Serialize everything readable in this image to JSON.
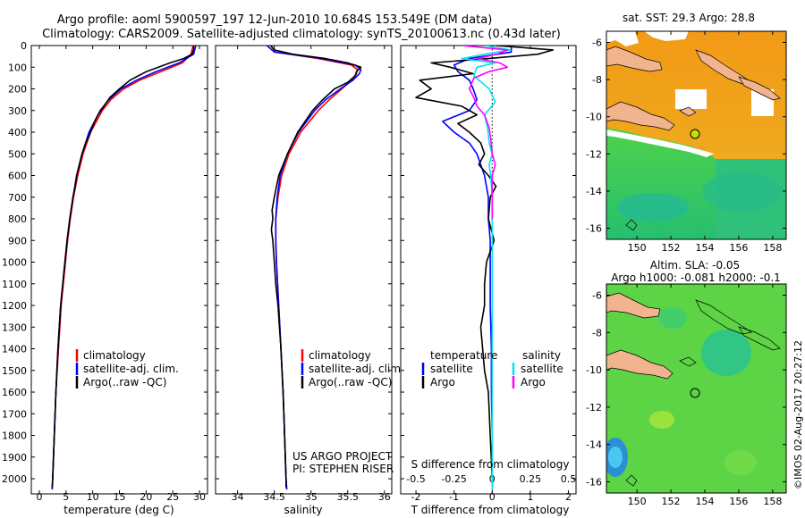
{
  "header": {
    "line1": "Argo profile: aoml 5900597_197 12-Jun-2010 10.684S 153.549E (DM data)",
    "line2": "Climatology: CARS2009. Satellite-adjusted climatology: synTS_20100613.nc (0.43d later)"
  },
  "credit": "©IMOS 02-Aug-2017 20:27:12",
  "colors": {
    "climatology": "#ff0000",
    "satellite": "#0000ff",
    "argo": "#000000",
    "argo_salinity_diff": "#ff00ff",
    "satellite_salinity_diff": "#00e5ee"
  },
  "chart_data": [
    {
      "type": "line",
      "name": "temperature-profile",
      "xlabel": "temperature (deg C)",
      "ylabel": "",
      "xlim": [
        -1.5,
        31.5
      ],
      "ylim": [
        0,
        2070
      ],
      "xticks": [
        0,
        5,
        10,
        15,
        20,
        25,
        30
      ],
      "yticks": [
        0,
        100,
        200,
        300,
        400,
        500,
        600,
        700,
        800,
        900,
        1000,
        1100,
        1200,
        1300,
        1400,
        1500,
        1600,
        1700,
        1800,
        1900,
        2000
      ],
      "legend": [
        "climatology",
        "satellite-adj. clim.",
        "Argo(..raw -QC)"
      ],
      "legend_position": "lower-middle",
      "series": [
        {
          "name": "climatology",
          "color": "#ff0000",
          "pressure": [
            0,
            40,
            80,
            120,
            160,
            200,
            250,
            300,
            400,
            500,
            600,
            700,
            800,
            900,
            1000,
            1200,
            1400,
            1600,
            1800,
            2000,
            2050
          ],
          "values": [
            28.8,
            28.4,
            26.8,
            22.8,
            18.8,
            15.8,
            13.4,
            11.8,
            9.6,
            8.2,
            7.2,
            6.4,
            5.8,
            5.3,
            4.9,
            4.1,
            3.6,
            3.1,
            2.8,
            2.5,
            2.4
          ]
        },
        {
          "name": "satellite-adj. clim.",
          "color": "#0000ff",
          "pressure": [
            0,
            40,
            80,
            120,
            160,
            200,
            250,
            300,
            400,
            500,
            600,
            700,
            800,
            900,
            1000,
            1200,
            1400,
            1600,
            1800,
            2000,
            2050
          ],
          "values": [
            29.3,
            28.9,
            26.2,
            21.9,
            18.2,
            15.3,
            13.0,
            11.4,
            9.3,
            8.0,
            7.0,
            6.3,
            5.7,
            5.2,
            4.8,
            4.0,
            3.5,
            3.1,
            2.8,
            2.5,
            2.4
          ]
        },
        {
          "name": "Argo",
          "color": "#000000",
          "pressure": [
            0,
            20,
            40,
            60,
            80,
            100,
            120,
            140,
            160,
            200,
            240,
            280,
            320,
            360,
            400,
            450,
            500,
            550,
            600,
            650,
            700,
            800,
            900,
            1000,
            1200,
            1400,
            1600,
            1800,
            2000,
            2040
          ],
          "values": [
            28.9,
            28.9,
            28.6,
            27.0,
            24.5,
            22.3,
            20.1,
            18.5,
            17.0,
            15.0,
            13.2,
            12.1,
            11.0,
            10.2,
            9.6,
            8.7,
            8.0,
            7.5,
            7.0,
            6.7,
            6.3,
            5.7,
            5.2,
            4.8,
            4.0,
            3.5,
            3.1,
            2.8,
            2.5,
            2.4
          ]
        }
      ]
    },
    {
      "type": "line",
      "name": "salinity-profile",
      "xlabel": "salinity",
      "xlim": [
        33.7,
        36.1
      ],
      "ylim": [
        0,
        2070
      ],
      "xticks": [
        34,
        34.5,
        35,
        35.5,
        36
      ],
      "xticklabels": [
        "34",
        "34.5",
        "35",
        "35.5",
        "36"
      ],
      "legend": [
        "climatology",
        "satellite-adj. clim.",
        "Argo(..raw -QC)"
      ],
      "annotation": [
        "US ARGO PROJECT",
        "PI: STEPHEN RISER"
      ],
      "series": [
        {
          "name": "climatology",
          "color": "#ff0000",
          "pressure": [
            0,
            30,
            60,
            90,
            110,
            130,
            160,
            200,
            250,
            300,
            400,
            500,
            600,
            700,
            800,
            900,
            1000,
            1200,
            1400,
            1600,
            1800,
            2000,
            2050
          ],
          "values": [
            34.45,
            34.52,
            35.1,
            35.55,
            35.63,
            35.62,
            35.55,
            35.42,
            35.25,
            35.1,
            34.86,
            34.7,
            34.6,
            34.55,
            34.52,
            34.52,
            34.53,
            34.56,
            34.59,
            34.62,
            34.64,
            34.66,
            34.67
          ]
        },
        {
          "name": "satellite-adj. clim.",
          "color": "#0000ff",
          "pressure": [
            0,
            30,
            60,
            90,
            110,
            130,
            160,
            200,
            250,
            300,
            400,
            500,
            600,
            700,
            800,
            900,
            1000,
            1200,
            1400,
            1600,
            1800,
            2000,
            2050
          ],
          "values": [
            34.4,
            34.5,
            35.15,
            35.6,
            35.68,
            35.66,
            35.57,
            35.4,
            35.2,
            35.05,
            34.83,
            34.68,
            34.58,
            34.54,
            34.52,
            34.52,
            34.53,
            34.56,
            34.59,
            34.62,
            34.64,
            34.66,
            34.67
          ]
        },
        {
          "name": "Argo",
          "color": "#000000",
          "pressure": [
            0,
            20,
            40,
            60,
            80,
            100,
            120,
            140,
            170,
            200,
            250,
            300,
            350,
            400,
            500,
            600,
            700,
            760,
            800,
            850,
            900,
            1000,
            1100,
            1200,
            1400,
            1600,
            1800,
            2000,
            2040
          ],
          "values": [
            34.45,
            34.5,
            34.75,
            35.2,
            35.5,
            35.68,
            35.62,
            35.6,
            35.5,
            35.32,
            35.16,
            35.02,
            34.92,
            34.82,
            34.68,
            34.56,
            34.5,
            34.47,
            34.48,
            34.46,
            34.48,
            34.5,
            34.52,
            34.55,
            34.59,
            34.62,
            34.64,
            34.66,
            34.66
          ]
        }
      ]
    },
    {
      "type": "line",
      "name": "difference-profile",
      "xlabel": "T difference from climatology",
      "xlabel_top": "S difference from climatology",
      "xlim": [
        -2.4,
        2.2
      ],
      "ylim": [
        0,
        2070
      ],
      "xticks": [
        -2,
        -1,
        0,
        1,
        2
      ],
      "xticks_top": [
        -0.5,
        -0.25,
        0,
        0.25,
        0.5
      ],
      "legend_temperature_title": "temperature",
      "legend_salinity_title": "salinity",
      "legend": [
        "satellite",
        "Argo",
        "satellite",
        "Argo"
      ],
      "zero_line": "dotted",
      "series": [
        {
          "name": "temperature satellite",
          "color": "#0000ff",
          "scale": "T",
          "pressure": [
            0,
            30,
            60,
            90,
            120,
            160,
            200,
            250,
            300,
            350,
            400,
            450,
            500,
            550,
            600,
            700,
            800,
            900,
            1000,
            1200,
            1400,
            1600,
            1800,
            2000,
            2050
          ],
          "values": [
            0.5,
            0.5,
            -0.6,
            -1.0,
            -0.9,
            -0.6,
            -0.5,
            -0.4,
            -0.6,
            -1.3,
            -1.0,
            -0.6,
            -0.4,
            -0.3,
            -0.2,
            -0.1,
            -0.1,
            -0.05,
            -0.05,
            -0.05,
            -0.02,
            -0.02,
            0.0,
            0.0,
            0.0
          ]
        },
        {
          "name": "temperature Argo",
          "color": "#000000",
          "scale": "T",
          "pressure": [
            0,
            20,
            40,
            60,
            80,
            100,
            130,
            160,
            200,
            240,
            280,
            320,
            360,
            400,
            450,
            500,
            550,
            600,
            650,
            700,
            800,
            900,
            1000,
            1100,
            1200,
            1300,
            1400,
            1500,
            1600,
            1800,
            2000,
            2040
          ],
          "values": [
            0.1,
            1.6,
            1.2,
            -0.1,
            -1.6,
            -1.1,
            -0.5,
            -1.9,
            -1.6,
            -2.0,
            -0.8,
            -0.4,
            -0.9,
            -0.6,
            -0.3,
            -0.2,
            -0.35,
            -0.1,
            0.1,
            -0.05,
            -0.1,
            0.05,
            -0.15,
            -0.2,
            -0.2,
            -0.3,
            -0.25,
            -0.2,
            -0.1,
            -0.05,
            0.0,
            0.0
          ]
        },
        {
          "name": "salinity satellite",
          "color": "#00e5ee",
          "scale": "S",
          "pressure": [
            0,
            20,
            40,
            60,
            80,
            100,
            140,
            200,
            260,
            320,
            380,
            450,
            500,
            550,
            600,
            700,
            800,
            1000,
            1200,
            1400,
            1600,
            1800,
            2000,
            2050
          ],
          "values": [
            -0.05,
            0.12,
            -0.05,
            -0.2,
            0.02,
            -0.1,
            -0.12,
            -0.02,
            0.02,
            -0.05,
            -0.03,
            -0.02,
            0.0,
            -0.02,
            -0.01,
            0.0,
            0.0,
            0.0,
            0.0,
            0.0,
            0.0,
            0.0,
            0.0,
            0.0
          ]
        },
        {
          "name": "salinity Argo",
          "color": "#ff00ff",
          "scale": "S",
          "pressure": [
            0,
            20,
            40,
            60,
            80,
            100,
            120,
            150,
            200,
            240,
            280,
            320,
            380,
            430,
            500,
            550,
            600,
            700,
            800
          ],
          "values": [
            -0.2,
            0.1,
            0.03,
            -0.1,
            0.05,
            0.1,
            -0.02,
            -0.12,
            -0.15,
            -0.12,
            -0.1,
            -0.05,
            -0.02,
            -0.01,
            0.0,
            0.02,
            0.0,
            0.0,
            0.0
          ]
        }
      ]
    },
    {
      "type": "heatmap",
      "name": "sst-map",
      "title": "sat. SST: 29.3  Argo: 28.8",
      "xlim": [
        148.2,
        158.8
      ],
      "ylim": [
        -16.6,
        -5.4
      ],
      "xticks": [
        150,
        152,
        154,
        156,
        158
      ],
      "yticks": [
        -6,
        -8,
        -10,
        -12,
        -14,
        -16
      ],
      "float_position": {
        "lon": 153.549,
        "lat": -10.684
      }
    },
    {
      "type": "heatmap",
      "name": "sla-map",
      "title": "Altim. SLA: -0.05",
      "subtitle": "Argo h1000: -0.081  h2000: -0.1",
      "xlim": [
        148.2,
        158.8
      ],
      "ylim": [
        -16.6,
        -5.4
      ],
      "xticks": [
        150,
        152,
        154,
        156,
        158
      ],
      "yticks": [
        -6,
        -8,
        -10,
        -12,
        -14,
        -16
      ],
      "float_position": {
        "lon": 153.549,
        "lat": -10.684
      }
    }
  ]
}
